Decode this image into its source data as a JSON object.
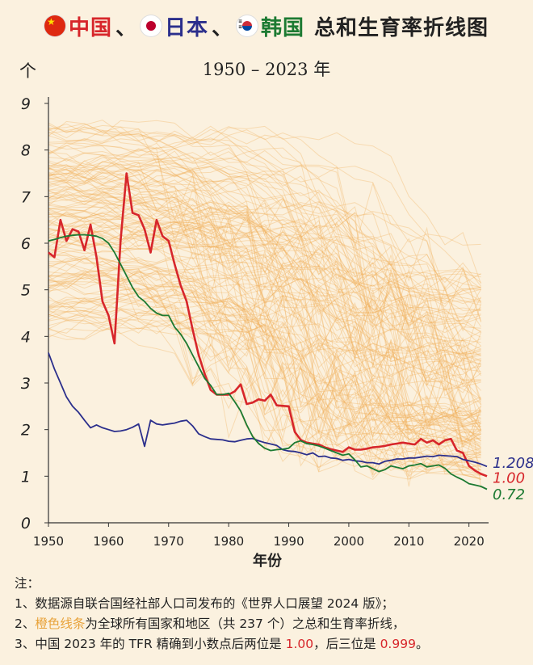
{
  "title": {
    "cn": "中国",
    "sep1": "、",
    "jp": "日本",
    "sep2": "、",
    "kr": "韩国",
    "rest": "总和生育率折线图"
  },
  "subtitle": "1950 – 2023 年",
  "y_unit": "个",
  "colors": {
    "background": "#FBF1DF",
    "china": "#D7262B",
    "japan": "#2B2F8C",
    "korea": "#1C7A32",
    "world": "#F2B05A"
  },
  "notes": {
    "heading": "注：",
    "line1": "1、数据源自联合国经社部人口司发布的《世界人口展望 2024 版》；",
    "line2_prefix": "2、",
    "line2_highlight": "橙色线条",
    "line2_suffix": "为全球所有国家和地区（共 237 个）之总和生育率折线，",
    "line3_a": "3、中国 2023 年的 TFR 精确到小数点后两位是 ",
    "line3_b": "1.00",
    "line3_c": "，后三位是 ",
    "line3_d": "0.999",
    "line3_e": "。"
  },
  "chart_data": {
    "type": "line",
    "title": "中国、日本、韩国 总和生育率折线图",
    "subtitle": "1950 – 2023 年",
    "xlabel": "年份",
    "ylabel": "个",
    "xlim": [
      1950,
      2023
    ],
    "ylim": [
      0,
      9
    ],
    "x_ticks": [
      1950,
      1960,
      1970,
      1980,
      1990,
      2000,
      2010,
      2020
    ],
    "y_ticks": [
      0,
      1,
      2,
      3,
      4,
      5,
      6,
      7,
      8,
      9
    ],
    "grid": false,
    "end_labels": {
      "japan": "1.208",
      "china": "1.00",
      "korea": "0.72"
    },
    "series": [
      {
        "key": "china",
        "color": "#D7262B",
        "points": [
          [
            1950,
            5.8
          ],
          [
            1951,
            5.7
          ],
          [
            1952,
            6.5
          ],
          [
            1953,
            6.05
          ],
          [
            1954,
            6.3
          ],
          [
            1955,
            6.25
          ],
          [
            1956,
            5.85
          ],
          [
            1957,
            6.4
          ],
          [
            1958,
            5.7
          ],
          [
            1959,
            4.75
          ],
          [
            1960,
            4.45
          ],
          [
            1961,
            3.85
          ],
          [
            1962,
            6.05
          ],
          [
            1963,
            7.5
          ],
          [
            1964,
            6.65
          ],
          [
            1965,
            6.6
          ],
          [
            1966,
            6.3
          ],
          [
            1967,
            5.8
          ],
          [
            1968,
            6.5
          ],
          [
            1969,
            6.15
          ],
          [
            1970,
            6.05
          ],
          [
            1971,
            5.55
          ],
          [
            1972,
            5.1
          ],
          [
            1973,
            4.75
          ],
          [
            1974,
            4.15
          ],
          [
            1975,
            3.6
          ],
          [
            1976,
            3.2
          ],
          [
            1977,
            2.85
          ],
          [
            1978,
            2.75
          ],
          [
            1979,
            2.75
          ],
          [
            1980,
            2.75
          ],
          [
            1981,
            2.82
          ],
          [
            1982,
            2.97
          ],
          [
            1983,
            2.55
          ],
          [
            1984,
            2.58
          ],
          [
            1985,
            2.65
          ],
          [
            1986,
            2.62
          ],
          [
            1987,
            2.75
          ],
          [
            1988,
            2.52
          ],
          [
            1989,
            2.51
          ],
          [
            1990,
            2.5
          ],
          [
            1991,
            1.95
          ],
          [
            1992,
            1.78
          ],
          [
            1993,
            1.72
          ],
          [
            1994,
            1.7
          ],
          [
            1995,
            1.68
          ],
          [
            1996,
            1.62
          ],
          [
            1997,
            1.58
          ],
          [
            1998,
            1.55
          ],
          [
            1999,
            1.52
          ],
          [
            2000,
            1.62
          ],
          [
            2001,
            1.57
          ],
          [
            2002,
            1.57
          ],
          [
            2003,
            1.59
          ],
          [
            2004,
            1.62
          ],
          [
            2005,
            1.63
          ],
          [
            2006,
            1.65
          ],
          [
            2007,
            1.68
          ],
          [
            2008,
            1.7
          ],
          [
            2009,
            1.72
          ],
          [
            2010,
            1.7
          ],
          [
            2011,
            1.68
          ],
          [
            2012,
            1.8
          ],
          [
            2013,
            1.72
          ],
          [
            2014,
            1.77
          ],
          [
            2015,
            1.68
          ],
          [
            2016,
            1.77
          ],
          [
            2017,
            1.8
          ],
          [
            2018,
            1.55
          ],
          [
            2019,
            1.5
          ],
          [
            2020,
            1.22
          ],
          [
            2021,
            1.12
          ],
          [
            2022,
            1.05
          ],
          [
            2023,
            1.0
          ]
        ]
      },
      {
        "key": "japan",
        "color": "#2B2F8C",
        "points": [
          [
            1950,
            3.65
          ],
          [
            1951,
            3.3
          ],
          [
            1952,
            3.0
          ],
          [
            1953,
            2.7
          ],
          [
            1954,
            2.5
          ],
          [
            1955,
            2.37
          ],
          [
            1956,
            2.2
          ],
          [
            1957,
            2.04
          ],
          [
            1958,
            2.1
          ],
          [
            1959,
            2.04
          ],
          [
            1960,
            2.0
          ],
          [
            1961,
            1.96
          ],
          [
            1962,
            1.97
          ],
          [
            1963,
            2.0
          ],
          [
            1964,
            2.05
          ],
          [
            1965,
            2.12
          ],
          [
            1966,
            1.64
          ],
          [
            1967,
            2.2
          ],
          [
            1968,
            2.12
          ],
          [
            1969,
            2.1
          ],
          [
            1970,
            2.12
          ],
          [
            1971,
            2.14
          ],
          [
            1972,
            2.18
          ],
          [
            1973,
            2.2
          ],
          [
            1974,
            2.08
          ],
          [
            1975,
            1.91
          ],
          [
            1976,
            1.85
          ],
          [
            1977,
            1.8
          ],
          [
            1978,
            1.79
          ],
          [
            1979,
            1.78
          ],
          [
            1980,
            1.75
          ],
          [
            1981,
            1.74
          ],
          [
            1982,
            1.77
          ],
          [
            1983,
            1.8
          ],
          [
            1984,
            1.81
          ],
          [
            1985,
            1.76
          ],
          [
            1986,
            1.72
          ],
          [
            1987,
            1.69
          ],
          [
            1988,
            1.66
          ],
          [
            1989,
            1.57
          ],
          [
            1990,
            1.54
          ],
          [
            1991,
            1.53
          ],
          [
            1992,
            1.5
          ],
          [
            1993,
            1.46
          ],
          [
            1994,
            1.5
          ],
          [
            1995,
            1.42
          ],
          [
            1996,
            1.43
          ],
          [
            1997,
            1.39
          ],
          [
            1998,
            1.38
          ],
          [
            1999,
            1.34
          ],
          [
            2000,
            1.36
          ],
          [
            2001,
            1.33
          ],
          [
            2002,
            1.32
          ],
          [
            2003,
            1.29
          ],
          [
            2004,
            1.29
          ],
          [
            2005,
            1.26
          ],
          [
            2006,
            1.32
          ],
          [
            2007,
            1.34
          ],
          [
            2008,
            1.37
          ],
          [
            2009,
            1.37
          ],
          [
            2010,
            1.39
          ],
          [
            2011,
            1.39
          ],
          [
            2012,
            1.41
          ],
          [
            2013,
            1.43
          ],
          [
            2014,
            1.42
          ],
          [
            2015,
            1.45
          ],
          [
            2016,
            1.44
          ],
          [
            2017,
            1.43
          ],
          [
            2018,
            1.42
          ],
          [
            2019,
            1.36
          ],
          [
            2020,
            1.33
          ],
          [
            2021,
            1.3
          ],
          [
            2022,
            1.26
          ],
          [
            2023,
            1.208
          ]
        ]
      },
      {
        "key": "korea",
        "color": "#1C7A32",
        "points": [
          [
            1950,
            6.05
          ],
          [
            1951,
            6.08
          ],
          [
            1952,
            6.12
          ],
          [
            1953,
            6.15
          ],
          [
            1954,
            6.17
          ],
          [
            1955,
            6.18
          ],
          [
            1956,
            6.18
          ],
          [
            1957,
            6.17
          ],
          [
            1958,
            6.15
          ],
          [
            1959,
            6.1
          ],
          [
            1960,
            6.0
          ],
          [
            1961,
            5.8
          ],
          [
            1962,
            5.55
          ],
          [
            1963,
            5.3
          ],
          [
            1964,
            5.05
          ],
          [
            1965,
            4.85
          ],
          [
            1966,
            4.75
          ],
          [
            1967,
            4.6
          ],
          [
            1968,
            4.5
          ],
          [
            1969,
            4.45
          ],
          [
            1970,
            4.45
          ],
          [
            1971,
            4.2
          ],
          [
            1972,
            4.05
          ],
          [
            1973,
            3.85
          ],
          [
            1974,
            3.6
          ],
          [
            1975,
            3.35
          ],
          [
            1976,
            3.1
          ],
          [
            1977,
            2.95
          ],
          [
            1978,
            2.75
          ],
          [
            1979,
            2.75
          ],
          [
            1980,
            2.78
          ],
          [
            1981,
            2.6
          ],
          [
            1982,
            2.4
          ],
          [
            1983,
            2.1
          ],
          [
            1984,
            1.85
          ],
          [
            1985,
            1.7
          ],
          [
            1986,
            1.6
          ],
          [
            1987,
            1.55
          ],
          [
            1988,
            1.57
          ],
          [
            1989,
            1.58
          ],
          [
            1990,
            1.6
          ],
          [
            1991,
            1.72
          ],
          [
            1992,
            1.76
          ],
          [
            1993,
            1.7
          ],
          [
            1994,
            1.68
          ],
          [
            1995,
            1.65
          ],
          [
            1996,
            1.6
          ],
          [
            1997,
            1.55
          ],
          [
            1998,
            1.5
          ],
          [
            1999,
            1.45
          ],
          [
            2000,
            1.48
          ],
          [
            2001,
            1.35
          ],
          [
            2002,
            1.2
          ],
          [
            2003,
            1.22
          ],
          [
            2004,
            1.16
          ],
          [
            2005,
            1.1
          ],
          [
            2006,
            1.14
          ],
          [
            2007,
            1.22
          ],
          [
            2008,
            1.19
          ],
          [
            2009,
            1.16
          ],
          [
            2010,
            1.22
          ],
          [
            2011,
            1.24
          ],
          [
            2012,
            1.27
          ],
          [
            2013,
            1.2
          ],
          [
            2014,
            1.22
          ],
          [
            2015,
            1.24
          ],
          [
            2016,
            1.17
          ],
          [
            2017,
            1.05
          ],
          [
            2018,
            0.98
          ],
          [
            2019,
            0.92
          ],
          [
            2020,
            0.84
          ],
          [
            2021,
            0.81
          ],
          [
            2022,
            0.78
          ],
          [
            2023,
            0.72
          ]
        ]
      }
    ]
  }
}
